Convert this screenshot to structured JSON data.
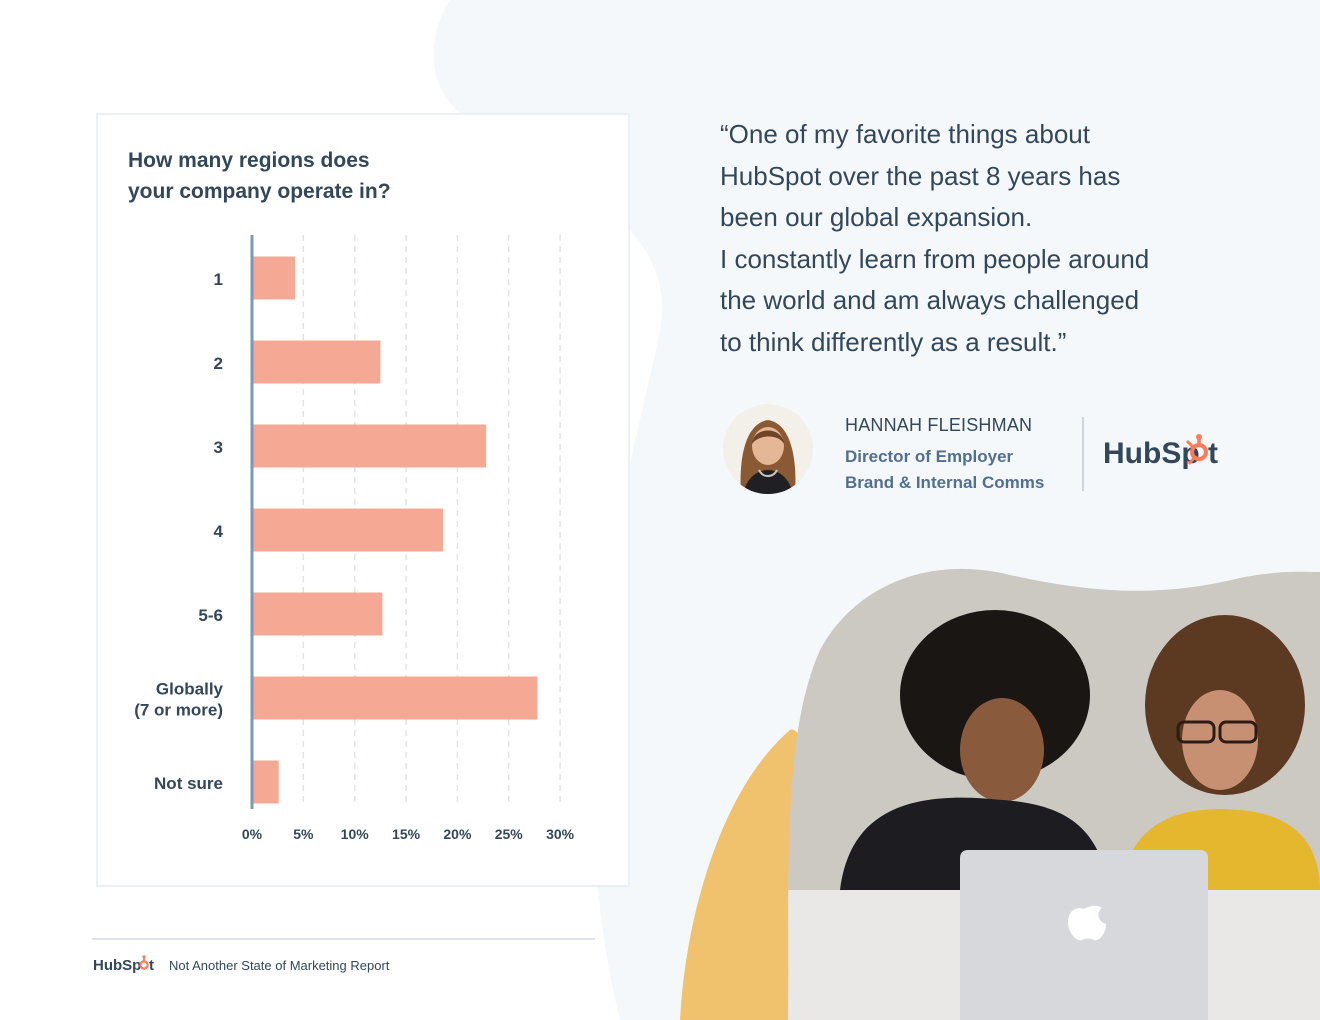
{
  "chart_data": {
    "type": "bar",
    "orientation": "horizontal",
    "title": "How many regions does your company operate in?",
    "title_lines": [
      "How many regions does",
      "your company operate in?"
    ],
    "categories": [
      "1",
      "2",
      "3",
      "4",
      "5-6",
      "Globally (7 or more)",
      "Not sure"
    ],
    "category_lines": [
      [
        "1"
      ],
      [
        "2"
      ],
      [
        "3"
      ],
      [
        "4"
      ],
      [
        "5-6"
      ],
      [
        "Globally",
        "(7 or more)"
      ],
      [
        "Not sure"
      ]
    ],
    "values": [
      4.2,
      12.5,
      22.8,
      18.6,
      12.7,
      27.8,
      2.6
    ],
    "xlim": [
      0,
      30
    ],
    "x_ticks": [
      0,
      5,
      10,
      15,
      20,
      25,
      30
    ],
    "x_tick_labels": [
      "0%",
      "5%",
      "10%",
      "15%",
      "20%",
      "25%",
      "30%"
    ],
    "grid": true,
    "bar_color": "#f5a994",
    "axis_color": "#7c98b6"
  },
  "quote": {
    "lines": [
      "“One of my favorite things about",
      "HubSpot over the past 8 years has",
      "been our global expansion.",
      "I constantly learn from people around",
      "the world and am always challenged",
      "to think differently as a result.”"
    ]
  },
  "person": {
    "name": "HANNAH FLEISHMAN",
    "role_lines": [
      "Director of Employer",
      "Brand & Internal Comms"
    ]
  },
  "footer": {
    "report_title": "Not Another State of Marketing Report"
  },
  "colors": {
    "text_dark": "#33475b",
    "text_muted": "#516f90",
    "hubspot_orange": "#ff7a59",
    "accent_yellow": "#f0c26e",
    "background_tint": "#f5f8fa"
  },
  "icons": {
    "brand_logo": "hubspot-logo",
    "laptop_logo": "apple-logo-icon"
  }
}
